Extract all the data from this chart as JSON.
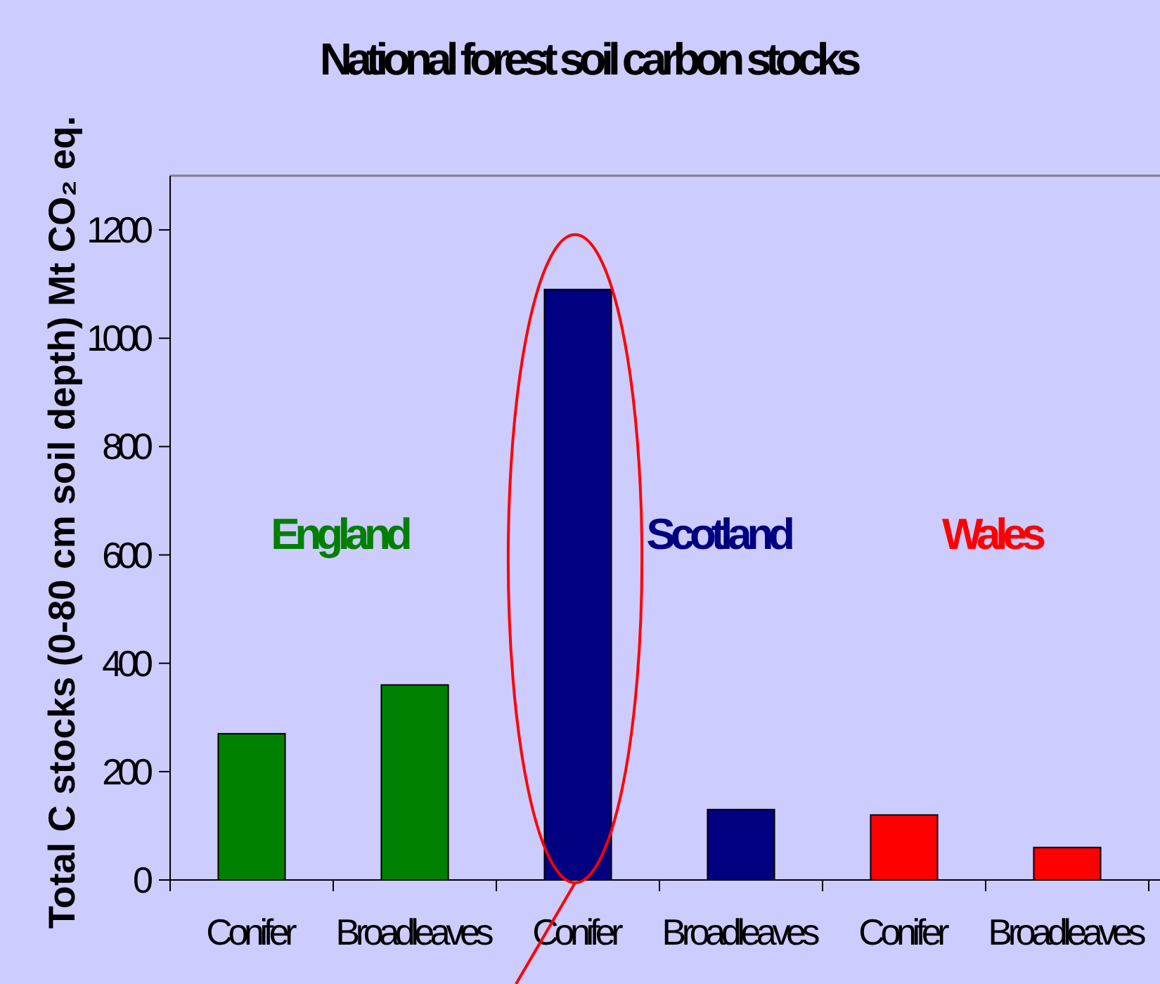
{
  "chart_data": {
    "type": "bar",
    "title": "National forest soil carbon stocks",
    "ylabel": "Total C stocks (0-80 cm soil depth) Mt CO₂ eq.",
    "categories": [
      "Conifer",
      "Broadleaves",
      "Conifer",
      "Broadleaves",
      "Conifer",
      "Broadleaves"
    ],
    "values": [
      270,
      360,
      1090,
      130,
      120,
      60
    ],
    "colors": [
      "#008000",
      "#008000",
      "#000080",
      "#000080",
      "#ff0000",
      "#ff0000"
    ],
    "ylim": [
      0,
      1300
    ],
    "yticks": [
      0,
      200,
      400,
      600,
      800,
      1000,
      1200
    ],
    "annotations": [
      "England",
      "Scotland",
      "Wales"
    ]
  }
}
